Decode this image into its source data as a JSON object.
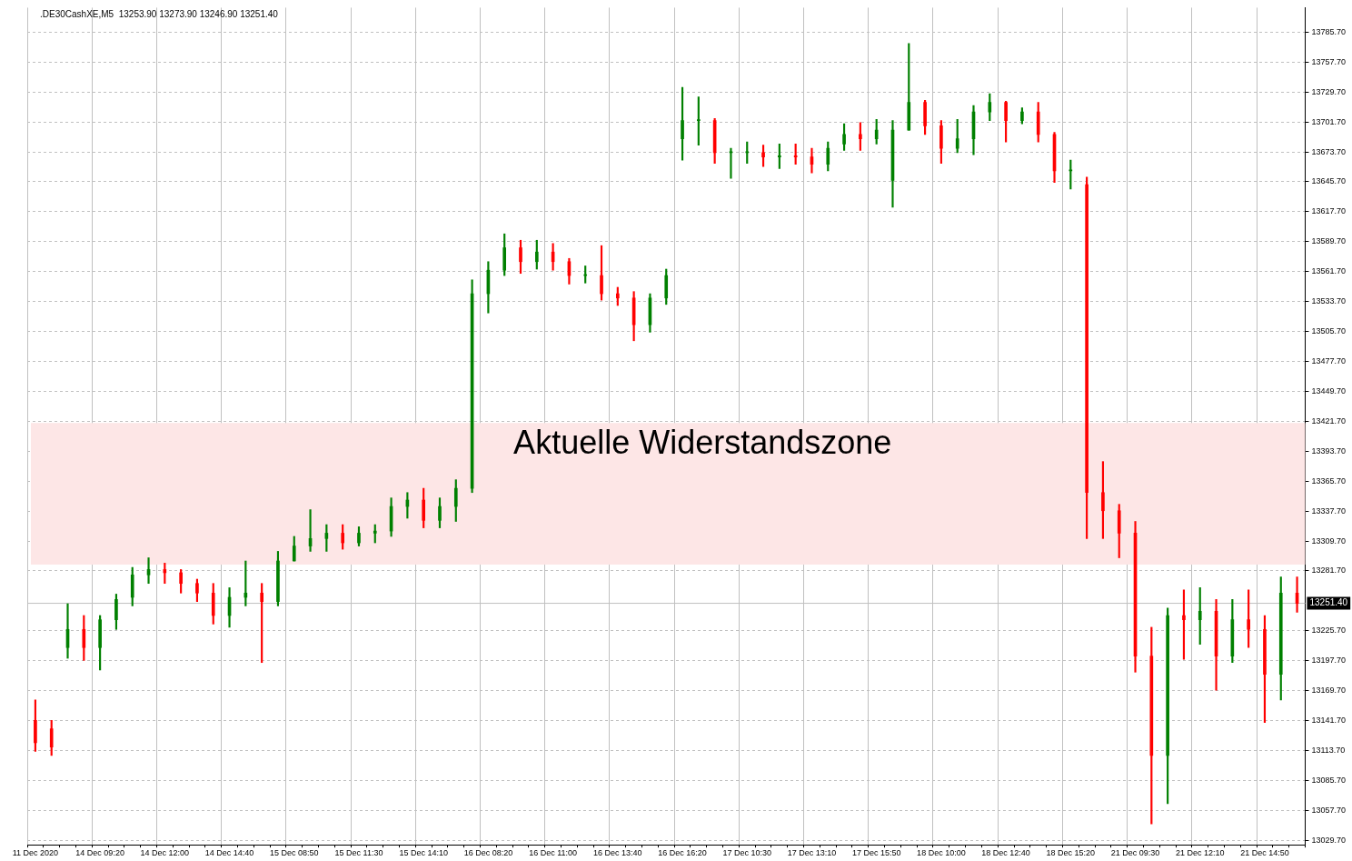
{
  "chart_data": {
    "type": "candlestick",
    "title": ".DE30CashXE,M5  13253.90 13273.90 13246.90 13251.40",
    "categories": [
      "11 Dec 2020",
      null,
      null,
      null,
      "14 Dec 09:20",
      null,
      null,
      null,
      "14 Dec 12:00",
      null,
      null,
      null,
      "14 Dec 14:40",
      null,
      null,
      null,
      "15 Dec 08:50",
      null,
      null,
      null,
      "15 Dec 11:30",
      null,
      null,
      null,
      "15 Dec 14:10",
      null,
      null,
      null,
      "16 Dec 08:20",
      null,
      null,
      null,
      "16 Dec 11:00",
      null,
      null,
      null,
      "16 Dec 13:40",
      null,
      null,
      null,
      "16 Dec 16:20",
      null,
      null,
      null,
      "17 Dec 10:30",
      null,
      null,
      null,
      "17 Dec 13:10",
      null,
      null,
      null,
      "17 Dec 15:50",
      null,
      null,
      null,
      "18 Dec 10:00",
      null,
      null,
      null,
      "18 Dec 12:40",
      null,
      null,
      null,
      "18 Dec 15:20",
      null,
      null,
      null,
      "21 Dec 09:30",
      null,
      null,
      null,
      "21 Dec 12:10",
      null,
      null,
      null,
      "21 Dec 14:50",
      null,
      null
    ],
    "ohlc": [
      [
        13142,
        13161,
        13113,
        13121
      ],
      [
        13134,
        13142,
        13109,
        13117
      ],
      [
        13210,
        13251,
        13200,
        13227
      ],
      [
        13227,
        13240,
        13198,
        13210
      ],
      [
        13210,
        13240,
        13189,
        13236
      ],
      [
        13236,
        13260,
        13227,
        13255
      ],
      [
        13257,
        13285,
        13249,
        13278
      ],
      [
        13278,
        13294,
        13270,
        13283
      ],
      [
        13283,
        13289,
        13270,
        13280
      ],
      [
        13280,
        13283,
        13261,
        13270
      ],
      [
        13270,
        13274,
        13253,
        13261
      ],
      [
        13261,
        13270,
        13232,
        13240
      ],
      [
        13240,
        13266,
        13229,
        13257
      ],
      [
        13257,
        13291,
        13249,
        13261
      ],
      [
        13261,
        13270,
        13196,
        13253
      ],
      [
        13253,
        13300,
        13249,
        13291
      ],
      [
        13291,
        13314,
        13291,
        13305
      ],
      [
        13305,
        13339,
        13300,
        13312
      ],
      [
        13312,
        13325,
        13300,
        13317
      ],
      [
        13317,
        13325,
        13302,
        13308
      ],
      [
        13308,
        13323,
        13305,
        13317
      ],
      [
        13317,
        13325,
        13308,
        13319
      ],
      [
        13319,
        13350,
        13314,
        13342
      ],
      [
        13342,
        13355,
        13331,
        13348
      ],
      [
        13348,
        13359,
        13322,
        13329
      ],
      [
        13329,
        13350,
        13322,
        13342
      ],
      [
        13342,
        13367,
        13328,
        13359
      ],
      [
        13359,
        13554,
        13355,
        13541
      ],
      [
        13541,
        13571,
        13523,
        13563
      ],
      [
        13563,
        13597,
        13558,
        13584
      ],
      [
        13584,
        13591,
        13560,
        13571
      ],
      [
        13571,
        13591,
        13564,
        13580
      ],
      [
        13580,
        13588,
        13563,
        13571
      ],
      [
        13571,
        13574,
        13550,
        13558
      ],
      [
        13558,
        13567,
        13551,
        13558
      ],
      [
        13558,
        13586,
        13535,
        13541
      ],
      [
        13541,
        13547,
        13530,
        13537
      ],
      [
        13537,
        13543,
        13497,
        13512
      ],
      [
        13512,
        13541,
        13505,
        13537
      ],
      [
        13537,
        13564,
        13531,
        13558
      ],
      [
        13686,
        13734,
        13666,
        13703
      ],
      [
        13703,
        13725,
        13680,
        13703
      ],
      [
        13703,
        13705,
        13663,
        13673
      ],
      [
        13673,
        13677,
        13649,
        13673
      ],
      [
        13673,
        13683,
        13663,
        13673
      ],
      [
        13673,
        13680,
        13660,
        13669
      ],
      [
        13669,
        13681,
        13658,
        13670
      ],
      [
        13670,
        13681,
        13662,
        13669
      ],
      [
        13669,
        13677,
        13654,
        13662
      ],
      [
        13662,
        13683,
        13656,
        13677
      ],
      [
        13681,
        13700,
        13675,
        13690
      ],
      [
        13690,
        13701,
        13675,
        13686
      ],
      [
        13686,
        13704,
        13681,
        13694
      ],
      [
        13647,
        13703,
        13622,
        13694
      ],
      [
        13694,
        13775,
        13694,
        13720
      ],
      [
        13720,
        13722,
        13690,
        13698
      ],
      [
        13698,
        13703,
        13663,
        13677
      ],
      [
        13677,
        13704,
        13673,
        13686
      ],
      [
        13686,
        13717,
        13671,
        13711
      ],
      [
        13711,
        13728,
        13703,
        13720
      ],
      [
        13720,
        13721,
        13683,
        13703
      ],
      [
        13703,
        13715,
        13700,
        13711
      ],
      [
        13711,
        13720,
        13683,
        13690
      ],
      [
        13690,
        13692,
        13645,
        13656
      ],
      [
        13656,
        13666,
        13639,
        13656
      ],
      [
        13643,
        13650,
        13312,
        13355
      ],
      [
        13355,
        13384,
        13312,
        13338
      ],
      [
        13338,
        13344,
        13294,
        13317
      ],
      [
        13317,
        13328,
        13187,
        13202
      ],
      [
        13202,
        13229,
        13045,
        13109
      ],
      [
        13109,
        13247,
        13064,
        13240
      ],
      [
        13240,
        13264,
        13199,
        13236
      ],
      [
        13236,
        13266,
        13213,
        13244
      ],
      [
        13244,
        13255,
        13170,
        13202
      ],
      [
        13202,
        13255,
        13196,
        13236
      ],
      [
        13236,
        13264,
        13210,
        13227
      ],
      [
        13227,
        13240,
        13140,
        13185
      ],
      [
        13185,
        13276,
        13161,
        13261
      ],
      [
        13261,
        13276,
        13243,
        13251.4
      ]
    ],
    "colors": [
      "#ff0000",
      "#ff0000",
      "#008000",
      "#ff0000",
      "#008000",
      "#008000",
      "#008000",
      "#008000",
      "#ff0000",
      "#ff0000",
      "#ff0000",
      "#ff0000",
      "#008000",
      "#008000",
      "#ff0000",
      "#008000",
      "#008000",
      "#008000",
      "#008000",
      "#ff0000",
      "#008000",
      "#008000",
      "#008000",
      "#008000",
      "#ff0000",
      "#008000",
      "#008000",
      "#008000",
      "#008000",
      "#008000",
      "#ff0000",
      "#008000",
      "#ff0000",
      "#ff0000",
      "#008000",
      "#ff0000",
      "#ff0000",
      "#ff0000",
      "#008000",
      "#008000",
      "#008000",
      "#008000",
      "#ff0000",
      "#008000",
      "#008000",
      "#ff0000",
      "#008000",
      "#ff0000",
      "#ff0000",
      "#008000",
      "#008000",
      "#ff0000",
      "#008000",
      "#008000",
      "#008000",
      "#ff0000",
      "#ff0000",
      "#008000",
      "#008000",
      "#008000",
      "#ff0000",
      "#008000",
      "#ff0000",
      "#ff0000",
      "#008000",
      "#ff0000",
      "#ff0000",
      "#ff0000",
      "#ff0000",
      "#ff0000",
      "#008000",
      "#ff0000",
      "#008000",
      "#ff0000",
      "#008000",
      "#ff0000",
      "#ff0000",
      "#008000",
      "#ff0000"
    ],
    "ylim": [
      13025.5,
      13808.6
    ],
    "yticks": [
      {
        "value": 13029.7,
        "label": "13029.70"
      },
      {
        "value": 13057.7,
        "label": "13057.70"
      },
      {
        "value": 13085.7,
        "label": "13085.70"
      },
      {
        "value": 13113.7,
        "label": "13113.70"
      },
      {
        "value": 13141.7,
        "label": "13141.70"
      },
      {
        "value": 13169.7,
        "label": "13169.70"
      },
      {
        "value": 13197.7,
        "label": "13197.70"
      },
      {
        "value": 13225.7,
        "label": "13225.70"
      },
      {
        "value": 13281.7,
        "label": "13281.70"
      },
      {
        "value": 13309.7,
        "label": "13309.70"
      },
      {
        "value": 13337.7,
        "label": "13337.70"
      },
      {
        "value": 13365.7,
        "label": "13365.70"
      },
      {
        "value": 13393.7,
        "label": "13393.70"
      },
      {
        "value": 13421.7,
        "label": "13421.70"
      },
      {
        "value": 13449.7,
        "label": "13449.70"
      },
      {
        "value": 13477.7,
        "label": "13477.70"
      },
      {
        "value": 13505.7,
        "label": "13505.70"
      },
      {
        "value": 13533.7,
        "label": "13533.70"
      },
      {
        "value": 13561.7,
        "label": "13561.70"
      },
      {
        "value": 13589.7,
        "label": "13589.70"
      },
      {
        "value": 13617.7,
        "label": "13617.70"
      },
      {
        "value": 13645.7,
        "label": "13645.70"
      },
      {
        "value": 13673.7,
        "label": "13673.70"
      },
      {
        "value": 13701.7,
        "label": "13701.70"
      },
      {
        "value": 13729.7,
        "label": "13729.70"
      },
      {
        "value": 13757.7,
        "label": "13757.70"
      },
      {
        "value": 13785.7,
        "label": "13785.70"
      }
    ],
    "grid": true,
    "legend": false,
    "ref_lines": [
      {
        "axis": "y",
        "value": 13251.4,
        "label": "13251.40",
        "color": "#c0c0c0"
      }
    ],
    "bands": [
      {
        "axis": "y",
        "from": 13287.6,
        "to": 13420,
        "label": "Aktuelle Widerstandszone",
        "color": "#fde6e6"
      }
    ]
  }
}
